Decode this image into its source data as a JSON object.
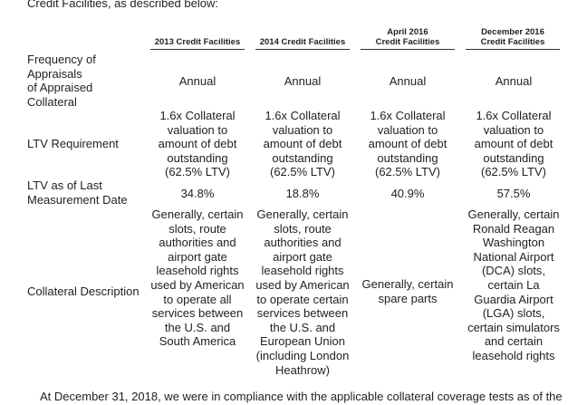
{
  "intro": "Credit Facilities, as described below:",
  "columns": [
    "2013 Credit Facilities",
    "2014 Credit Facilities",
    "April 2016\nCredit Facilities",
    "December 2016\nCredit Facilities"
  ],
  "rows": [
    {
      "label": "Frequency of\nAppraisals\nof Appraised\nCollateral",
      "cells": [
        "Annual",
        "Annual",
        "Annual",
        "Annual"
      ]
    },
    {
      "label": "LTV Requirement",
      "cells": [
        "1.6x Collateral\nvaluation to\namount of debt\noutstanding\n(62.5% LTV)",
        "1.6x Collateral\nvaluation to\namount of debt\noutstanding\n(62.5% LTV)",
        "1.6x Collateral\nvaluation to\namount of debt\noutstanding\n(62.5% LTV)",
        "1.6x Collateral\nvaluation to\namount of debt\noutstanding\n(62.5% LTV)"
      ]
    },
    {
      "label": "LTV as of Last\nMeasurement Date",
      "cells": [
        "34.8%",
        "18.8%",
        "40.9%",
        "57.5%"
      ]
    },
    {
      "label": "Collateral Description",
      "cells": [
        "Generally, certain\nslots, route\nauthorities and\nairport gate\nleasehold rights\nused by American\nto operate all\nservices between\nthe U.S. and\nSouth America",
        "Generally, certain\nslots, route\nauthorities and\nairport gate\nleasehold rights\nused by American\nto operate certain\nservices between\nthe U.S. and\nEuropean Union\n(including London\nHeathrow)",
        "Generally, certain\nspare parts",
        "Generally, certain\nRonald Reagan\nWashington\nNational Airport\n(DCA) slots,\ncertain La\nGuardia Airport\n(LGA) slots,\ncertain simulators\nand certain\nleasehold rights"
      ]
    }
  ],
  "footer": "At December 31, 2018, we were in compliance with the applicable collateral coverage tests as of the"
}
